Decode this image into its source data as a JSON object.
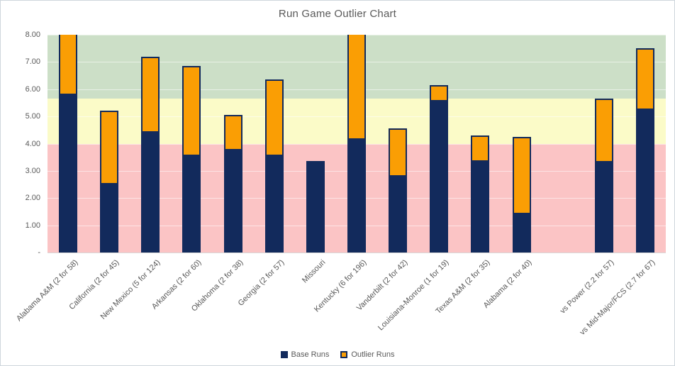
{
  "title": "Run Game Outlier Chart",
  "legend": {
    "base_label": "Base Runs",
    "outlier_label": "Outlier Runs"
  },
  "colors": {
    "bar_base": "#122a5c",
    "bar_border": "#122a5c",
    "bar_outlier": "#fa9e04",
    "band_red": "#fbc4c5",
    "band_yellow": "#fbfbc8",
    "band_green": "#ccdfc7",
    "text": "#595959",
    "gridline": "rgba(255,255,255,0.55)"
  },
  "chart_data": {
    "type": "bar",
    "stacked": true,
    "title": "Run Game Outlier Chart",
    "xlabel": "",
    "ylabel": "",
    "ylim": [
      0,
      8
    ],
    "grid": true,
    "legend_position": "bottom",
    "categories": [
      "Alabama A&M (2 for 58)",
      "California (2 for 45)",
      "New Mexico (5 for 124)",
      "Arkansas (2 for 60)",
      "Oklahoma (2 for 38)",
      "Georgia (2 for 57)",
      "Missouri",
      "Kentucky (6 for 196)",
      "Vanderbilt (2 for 42)",
      "Louisiana-Monroe (1 for 19)",
      "Texas A&M (2 for 35)",
      "Alabama (2 for 40)",
      "",
      "vs Power (2.2 for 57)",
      "vs Mid-Major/FCS (2.7 for 67)"
    ],
    "series": [
      {
        "name": "Base Runs",
        "values": [
          5.85,
          2.55,
          4.45,
          3.6,
          3.8,
          3.6,
          3.35,
          4.2,
          2.85,
          5.6,
          3.4,
          1.45,
          null,
          3.35,
          5.3
        ]
      },
      {
        "name": "Outlier Runs",
        "values": [
          2.15,
          2.65,
          2.75,
          3.25,
          1.25,
          2.75,
          0,
          3.8,
          1.7,
          0.55,
          0.9,
          2.8,
          null,
          2.3,
          2.2
        ]
      }
    ],
    "y_ticks": [
      {
        "label": "8.00",
        "value": 8
      },
      {
        "label": "7.00",
        "value": 7
      },
      {
        "label": "6.00",
        "value": 6
      },
      {
        "label": "5.00",
        "value": 5
      },
      {
        "label": "4.00",
        "value": 4
      },
      {
        "label": "3.00",
        "value": 3
      },
      {
        "label": "2.00",
        "value": 2
      },
      {
        "label": "1.00",
        "value": 1
      },
      {
        "label": "-",
        "value": 0
      }
    ],
    "gridline_values": [
      1,
      2,
      3,
      4,
      5,
      6,
      7,
      8
    ],
    "bands": [
      {
        "name": "red-zone",
        "from": 0,
        "to": 4
      },
      {
        "name": "yellow-zone",
        "from": 4,
        "to": 5.65
      },
      {
        "name": "green-zone",
        "from": 5.65,
        "to": 8
      }
    ]
  }
}
